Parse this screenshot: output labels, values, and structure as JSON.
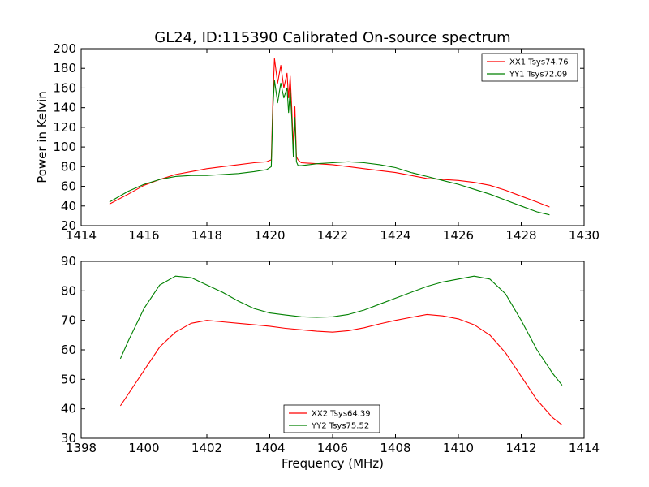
{
  "figure": {
    "title": "GL24, ID:115390 Calibrated On-source spectrum"
  },
  "colors": {
    "red": "#ff0000",
    "green": "#008000"
  },
  "chart_data": [
    {
      "type": "line",
      "title": "GL24, ID:115390 Calibrated On-source spectrum",
      "xlabel": "",
      "ylabel": "Power in Kelvin",
      "xlim": [
        1414,
        1430
      ],
      "ylim": [
        20,
        200
      ],
      "xticks": [
        "1414",
        "1416",
        "1418",
        "1420",
        "1422",
        "1424",
        "1426",
        "1428",
        "1430"
      ],
      "yticks": [
        "20",
        "40",
        "60",
        "80",
        "100",
        "120",
        "140",
        "160",
        "180",
        "200"
      ],
      "grid": false,
      "legend_position": "top-right",
      "series": [
        {
          "name": "XX1 Tsys74.76",
          "color": "#ff0000",
          "x": [
            1414.9,
            1415.5,
            1416.0,
            1416.5,
            1417.0,
            1417.5,
            1418.0,
            1418.5,
            1419.0,
            1419.5,
            1419.9,
            1420.05,
            1420.1,
            1420.15,
            1420.25,
            1420.35,
            1420.45,
            1420.55,
            1420.6,
            1420.65,
            1420.7,
            1420.75,
            1420.8,
            1420.85,
            1420.9,
            1421.0,
            1421.5,
            1422.0,
            1422.5,
            1423.0,
            1423.5,
            1424.0,
            1424.5,
            1425.0,
            1425.5,
            1426.0,
            1426.5,
            1427.0,
            1427.5,
            1428.0,
            1428.5,
            1428.9
          ],
          "y": [
            42,
            52,
            61,
            67,
            72,
            75,
            78,
            80,
            82,
            84,
            85,
            87,
            150,
            190,
            165,
            183,
            160,
            175,
            150,
            172,
            140,
            100,
            141,
            90,
            87,
            84,
            83,
            82,
            80,
            78,
            76,
            74,
            71,
            68,
            67,
            66,
            64,
            61,
            56,
            50,
            44,
            39
          ]
        },
        {
          "name": "YY1 Tsys72.09",
          "color": "#008000",
          "x": [
            1414.9,
            1415.5,
            1416.0,
            1416.5,
            1417.0,
            1417.5,
            1418.0,
            1418.5,
            1419.0,
            1419.5,
            1419.9,
            1420.05,
            1420.1,
            1420.15,
            1420.25,
            1420.35,
            1420.45,
            1420.55,
            1420.6,
            1420.65,
            1420.7,
            1420.75,
            1420.8,
            1420.85,
            1420.9,
            1421.0,
            1421.5,
            1422.0,
            1422.5,
            1423.0,
            1423.5,
            1424.0,
            1424.5,
            1425.0,
            1425.5,
            1426.0,
            1426.5,
            1427.0,
            1427.5,
            1428.0,
            1428.5,
            1428.9
          ],
          "y": [
            44,
            55,
            62,
            67,
            70,
            71,
            71,
            72,
            73,
            75,
            77,
            80,
            140,
            168,
            145,
            165,
            150,
            160,
            135,
            158,
            130,
            90,
            130,
            85,
            81,
            81,
            83,
            84,
            85,
            84,
            82,
            79,
            74,
            70,
            66,
            62,
            57,
            52,
            46,
            40,
            34,
            31
          ]
        }
      ]
    },
    {
      "type": "line",
      "title": "",
      "xlabel": "Frequency (MHz)",
      "ylabel": "",
      "xlim": [
        1398,
        1414
      ],
      "ylim": [
        30,
        90
      ],
      "xticks": [
        "1398",
        "1400",
        "1402",
        "1404",
        "1406",
        "1408",
        "1410",
        "1412",
        "1414"
      ],
      "yticks": [
        "30",
        "40",
        "50",
        "60",
        "70",
        "80",
        "90"
      ],
      "grid": false,
      "legend_position": "lower-center",
      "series": [
        {
          "name": "XX2 Tsys64.39",
          "color": "#ff0000",
          "x": [
            1399.25,
            1399.5,
            1400.0,
            1400.5,
            1401.0,
            1401.5,
            1402.0,
            1402.5,
            1403.0,
            1403.5,
            1404.0,
            1404.5,
            1405.0,
            1405.5,
            1406.0,
            1406.5,
            1407.0,
            1407.5,
            1408.0,
            1408.5,
            1409.0,
            1409.5,
            1410.0,
            1410.5,
            1411.0,
            1411.5,
            1412.0,
            1412.5,
            1413.0,
            1413.3
          ],
          "y": [
            41,
            45,
            53,
            61,
            66,
            69,
            70,
            69.5,
            69,
            68.5,
            68,
            67.3,
            66.8,
            66.3,
            66,
            66.5,
            67.5,
            68.8,
            70,
            71,
            72,
            71.5,
            70.5,
            68.5,
            65,
            59,
            51,
            43,
            37,
            34.5
          ]
        },
        {
          "name": "YY2 Tsys75.52",
          "color": "#008000",
          "x": [
            1399.25,
            1399.5,
            1400.0,
            1400.5,
            1401.0,
            1401.5,
            1402.0,
            1402.5,
            1403.0,
            1403.5,
            1404.0,
            1404.5,
            1405.0,
            1405.5,
            1406.0,
            1406.5,
            1407.0,
            1407.5,
            1408.0,
            1408.5,
            1409.0,
            1409.5,
            1410.0,
            1410.5,
            1411.0,
            1411.5,
            1412.0,
            1412.5,
            1413.0,
            1413.3
          ],
          "y": [
            57,
            63,
            74,
            82,
            85,
            84.5,
            82,
            79.5,
            76.5,
            74,
            72.5,
            71.8,
            71.2,
            71,
            71.2,
            72,
            73.5,
            75.5,
            77.5,
            79.5,
            81.5,
            83,
            84,
            85,
            84,
            79,
            70,
            60,
            52,
            48
          ]
        }
      ]
    }
  ]
}
